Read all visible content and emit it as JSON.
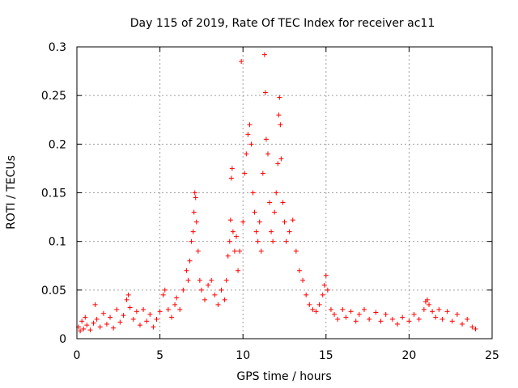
{
  "chart_data": {
    "type": "scatter",
    "title": "Day 115 of 2019, Rate Of TEC Index for receiver ac11",
    "xlabel": "GPS time / hours",
    "ylabel": "ROTI / TECUs",
    "xlim": [
      0,
      25
    ],
    "ylim": [
      0,
      0.3
    ],
    "xticks": [
      0,
      5,
      10,
      15,
      20,
      25
    ],
    "yticks": [
      0,
      0.05,
      0.1,
      0.15,
      0.2,
      0.25,
      0.3
    ],
    "xtick_labels": [
      "0",
      "5",
      "10",
      "15",
      "20",
      "25"
    ],
    "ytick_labels": [
      "0",
      "0.05",
      "0.1",
      "0.15",
      "0.2",
      "0.25",
      "0.3"
    ],
    "grid": true,
    "marker": "+",
    "series_color": "#ff0000",
    "series": [
      {
        "name": "ROTI",
        "points": [
          [
            0.1,
            0.012
          ],
          [
            0.2,
            0.008
          ],
          [
            0.3,
            0.018
          ],
          [
            0.4,
            0.01
          ],
          [
            0.5,
            0.022
          ],
          [
            0.6,
            0.014
          ],
          [
            0.8,
            0.009
          ],
          [
            1.0,
            0.016
          ],
          [
            1.1,
            0.035
          ],
          [
            1.2,
            0.02
          ],
          [
            1.4,
            0.012
          ],
          [
            1.6,
            0.026
          ],
          [
            1.8,
            0.015
          ],
          [
            2.0,
            0.022
          ],
          [
            2.2,
            0.011
          ],
          [
            2.4,
            0.03
          ],
          [
            2.6,
            0.017
          ],
          [
            2.8,
            0.024
          ],
          [
            3.0,
            0.04
          ],
          [
            3.1,
            0.045
          ],
          [
            3.2,
            0.032
          ],
          [
            3.4,
            0.02
          ],
          [
            3.6,
            0.028
          ],
          [
            3.8,
            0.014
          ],
          [
            4.0,
            0.03
          ],
          [
            4.2,
            0.018
          ],
          [
            4.4,
            0.025
          ],
          [
            4.6,
            0.012
          ],
          [
            4.8,
            0.02
          ],
          [
            5.0,
            0.028
          ],
          [
            5.2,
            0.045
          ],
          [
            5.3,
            0.05
          ],
          [
            5.5,
            0.03
          ],
          [
            5.7,
            0.022
          ],
          [
            5.9,
            0.035
          ],
          [
            6.0,
            0.042
          ],
          [
            6.2,
            0.03
          ],
          [
            6.4,
            0.05
          ],
          [
            6.6,
            0.07
          ],
          [
            6.7,
            0.06
          ],
          [
            6.8,
            0.08
          ],
          [
            6.9,
            0.1
          ],
          [
            7.0,
            0.11
          ],
          [
            7.05,
            0.13
          ],
          [
            7.1,
            0.15
          ],
          [
            7.15,
            0.145
          ],
          [
            7.2,
            0.12
          ],
          [
            7.3,
            0.09
          ],
          [
            7.4,
            0.06
          ],
          [
            7.5,
            0.05
          ],
          [
            7.7,
            0.04
          ],
          [
            7.9,
            0.055
          ],
          [
            8.1,
            0.06
          ],
          [
            8.3,
            0.045
          ],
          [
            8.5,
            0.035
          ],
          [
            8.7,
            0.05
          ],
          [
            8.9,
            0.04
          ],
          [
            9.0,
            0.06
          ],
          [
            9.1,
            0.085
          ],
          [
            9.2,
            0.1
          ],
          [
            9.25,
            0.122
          ],
          [
            9.3,
            0.165
          ],
          [
            9.35,
            0.175
          ],
          [
            9.4,
            0.11
          ],
          [
            9.5,
            0.09
          ],
          [
            9.6,
            0.105
          ],
          [
            9.7,
            0.07
          ],
          [
            9.8,
            0.09
          ],
          [
            9.9,
            0.285
          ],
          [
            10.0,
            0.12
          ],
          [
            10.1,
            0.17
          ],
          [
            10.2,
            0.19
          ],
          [
            10.3,
            0.21
          ],
          [
            10.4,
            0.22
          ],
          [
            10.5,
            0.2
          ],
          [
            10.6,
            0.15
          ],
          [
            10.7,
            0.13
          ],
          [
            10.8,
            0.11
          ],
          [
            10.9,
            0.1
          ],
          [
            11.0,
            0.12
          ],
          [
            11.1,
            0.09
          ],
          [
            11.2,
            0.17
          ],
          [
            11.3,
            0.292
          ],
          [
            11.35,
            0.253
          ],
          [
            11.4,
            0.205
          ],
          [
            11.5,
            0.19
          ],
          [
            11.6,
            0.14
          ],
          [
            11.7,
            0.11
          ],
          [
            11.8,
            0.1
          ],
          [
            11.9,
            0.13
          ],
          [
            12.0,
            0.15
          ],
          [
            12.1,
            0.18
          ],
          [
            12.15,
            0.23
          ],
          [
            12.2,
            0.248
          ],
          [
            12.25,
            0.22
          ],
          [
            12.3,
            0.185
          ],
          [
            12.4,
            0.14
          ],
          [
            12.5,
            0.12
          ],
          [
            12.6,
            0.1
          ],
          [
            12.8,
            0.11
          ],
          [
            13.0,
            0.122
          ],
          [
            13.2,
            0.09
          ],
          [
            13.4,
            0.07
          ],
          [
            13.6,
            0.06
          ],
          [
            13.8,
            0.045
          ],
          [
            14.0,
            0.035
          ],
          [
            14.2,
            0.03
          ],
          [
            14.4,
            0.028
          ],
          [
            14.6,
            0.035
          ],
          [
            14.8,
            0.045
          ],
          [
            14.9,
            0.055
          ],
          [
            15.0,
            0.065
          ],
          [
            15.1,
            0.05
          ],
          [
            15.3,
            0.03
          ],
          [
            15.5,
            0.025
          ],
          [
            15.7,
            0.02
          ],
          [
            16.0,
            0.03
          ],
          [
            16.2,
            0.022
          ],
          [
            16.5,
            0.028
          ],
          [
            16.8,
            0.018
          ],
          [
            17.0,
            0.025
          ],
          [
            17.3,
            0.03
          ],
          [
            17.6,
            0.02
          ],
          [
            18.0,
            0.027
          ],
          [
            18.3,
            0.018
          ],
          [
            18.6,
            0.025
          ],
          [
            19.0,
            0.02
          ],
          [
            19.3,
            0.015
          ],
          [
            19.6,
            0.022
          ],
          [
            20.0,
            0.018
          ],
          [
            20.3,
            0.025
          ],
          [
            20.6,
            0.02
          ],
          [
            20.9,
            0.03
          ],
          [
            21.0,
            0.038
          ],
          [
            21.1,
            0.04
          ],
          [
            21.2,
            0.035
          ],
          [
            21.4,
            0.028
          ],
          [
            21.6,
            0.022
          ],
          [
            21.8,
            0.03
          ],
          [
            22.0,
            0.02
          ],
          [
            22.3,
            0.028
          ],
          [
            22.6,
            0.018
          ],
          [
            22.9,
            0.025
          ],
          [
            23.2,
            0.015
          ],
          [
            23.5,
            0.02
          ],
          [
            23.8,
            0.012
          ],
          [
            24.0,
            0.01
          ]
        ]
      }
    ]
  }
}
